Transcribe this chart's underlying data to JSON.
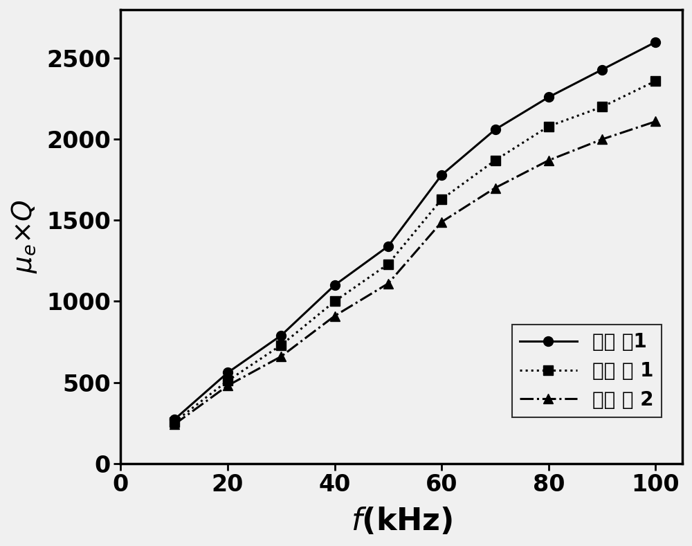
{
  "series1_x": [
    10,
    20,
    30,
    40,
    50,
    60,
    70,
    80,
    90,
    100
  ],
  "series1_y": [
    270,
    560,
    790,
    1100,
    1340,
    1780,
    2060,
    2260,
    2430,
    2600
  ],
  "series2_x": [
    10,
    20,
    30,
    40,
    50,
    60,
    70,
    80,
    90,
    100
  ],
  "series2_y": [
    255,
    510,
    730,
    1000,
    1230,
    1630,
    1870,
    2080,
    2200,
    2360
  ],
  "series3_x": [
    10,
    20,
    30,
    40,
    50,
    60,
    70,
    80,
    90,
    100
  ],
  "series3_y": [
    240,
    480,
    660,
    910,
    1110,
    1490,
    1700,
    1870,
    2000,
    2110
  ],
  "label1": "实施 例1",
  "label2": "对比 例 1",
  "label3": "对比 例 2",
  "color": "#000000",
  "bg_color": "#f0f0f0",
  "linewidth": 2.2,
  "markersize": 10,
  "xlim": [
    0,
    105
  ],
  "ylim": [
    0,
    2800
  ],
  "xticks": [
    0,
    20,
    40,
    60,
    80,
    100
  ],
  "yticks": [
    0,
    500,
    1000,
    1500,
    2000,
    2500
  ],
  "tick_labelsize": 24,
  "legend_fontsize": 20,
  "xlabel_fontsize": 32,
  "ylabel_fontsize": 28,
  "spine_linewidth": 2.5
}
